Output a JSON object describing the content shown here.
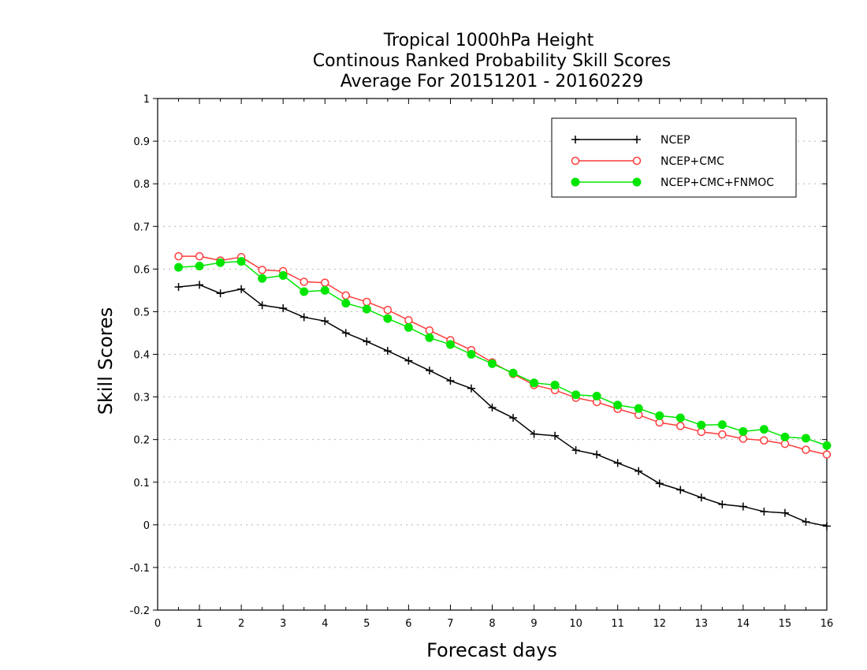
{
  "chart_data": {
    "type": "line",
    "title": [
      "Tropical 1000hPa Height",
      "Continous Ranked Probability Skill Scores",
      "Average For 20151201 - 20160229"
    ],
    "xlabel": "Forecast days",
    "ylabel": "Skill Scores",
    "xlim": [
      0,
      16
    ],
    "ylim": [
      -0.2,
      1
    ],
    "x_ticks": [
      "0",
      "1",
      "2",
      "3",
      "4",
      "5",
      "6",
      "7",
      "8",
      "9",
      "10",
      "11",
      "12",
      "13",
      "14",
      "15",
      "16"
    ],
    "y_ticks": [
      "-0.2",
      "-0.1",
      "0",
      "0.1",
      "0.2",
      "0.3",
      "0.4",
      "0.5",
      "0.6",
      "0.7",
      "0.8",
      "0.9",
      "1"
    ],
    "y_grid": true,
    "legend_position": "top-right",
    "x": [
      0.5,
      1,
      1.5,
      2,
      2.5,
      3,
      3.5,
      4,
      4.5,
      5,
      5.5,
      6,
      6.5,
      7,
      7.5,
      8,
      8.5,
      9,
      9.5,
      10,
      10.5,
      11,
      11.5,
      12,
      12.5,
      13,
      13.5,
      14,
      14.5,
      15,
      15.5,
      16
    ],
    "series": [
      {
        "name": "NCEP",
        "color": "#000000",
        "marker": "plus",
        "values": [
          0.558,
          0.563,
          0.543,
          0.553,
          0.515,
          0.508,
          0.487,
          0.478,
          0.45,
          0.43,
          0.408,
          0.385,
          0.362,
          0.338,
          0.32,
          0.275,
          0.251,
          0.213,
          0.209,
          0.175,
          0.165,
          0.145,
          0.126,
          0.097,
          0.082,
          0.064,
          0.048,
          0.043,
          0.031,
          0.028,
          0.007,
          -0.003
        ]
      },
      {
        "name": "NCEP+CMC",
        "color": "#ff3c3c",
        "marker": "open-circle",
        "values": [
          0.63,
          0.63,
          0.62,
          0.628,
          0.598,
          0.595,
          0.57,
          0.568,
          0.538,
          0.523,
          0.504,
          0.48,
          0.456,
          0.433,
          0.41,
          0.381,
          0.354,
          0.328,
          0.316,
          0.298,
          0.288,
          0.272,
          0.258,
          0.24,
          0.232,
          0.218,
          0.212,
          0.202,
          0.198,
          0.19,
          0.176,
          0.165
        ]
      },
      {
        "name": "NCEP+CMC+FNMOC",
        "color": "#00e600",
        "marker": "filled-circle",
        "values": [
          0.604,
          0.607,
          0.615,
          0.618,
          0.578,
          0.585,
          0.547,
          0.55,
          0.52,
          0.506,
          0.484,
          0.463,
          0.439,
          0.423,
          0.4,
          0.378,
          0.356,
          0.333,
          0.328,
          0.305,
          0.302,
          0.281,
          0.273,
          0.256,
          0.251,
          0.234,
          0.235,
          0.219,
          0.224,
          0.206,
          0.203,
          0.186
        ]
      }
    ]
  }
}
